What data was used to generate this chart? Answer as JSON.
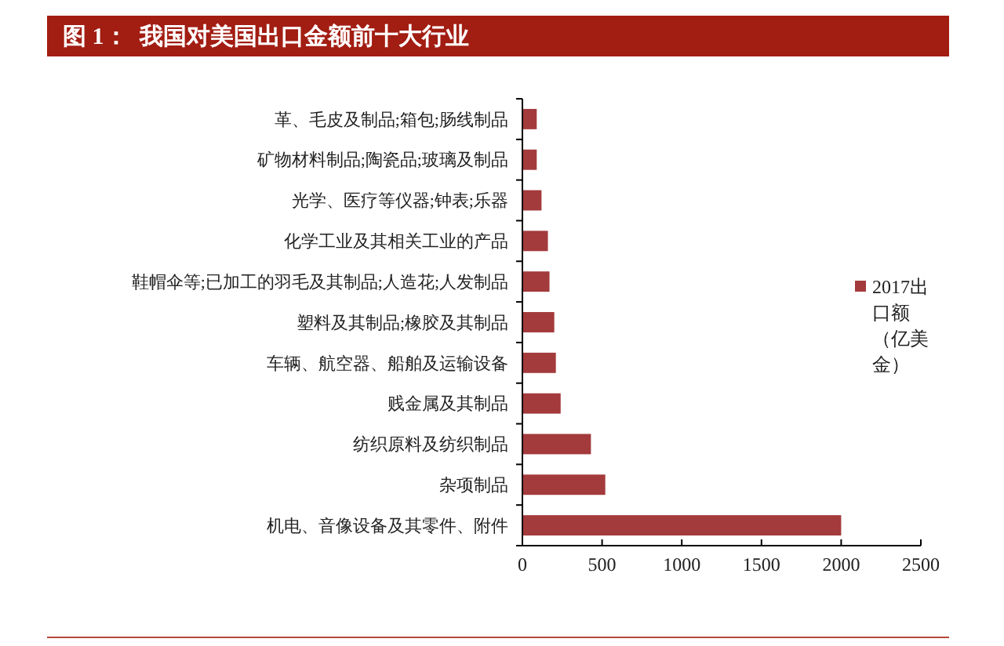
{
  "chart_data": {
    "type": "bar",
    "orientation": "horizontal",
    "title": "图 1：  我国对美国出口金额前十大行业",
    "categories": [
      "革、毛皮及制品;箱包;肠线制品",
      "矿物材料制品;陶瓷品;玻璃及制品",
      "光学、医疗等仪器;钟表;乐器",
      "化学工业及其相关工业的产品",
      "鞋帽伞等;已加工的羽毛及其制品;人造花;人发制品",
      "塑料及其制品;橡胶及其制品",
      "车辆、航空器、船舶及运输设备",
      "贱金属及其制品",
      "纺织原料及纺织制品",
      "杂项制品",
      "机电、音像设备及其零件、附件"
    ],
    "series": [
      {
        "name": "2017出口额（亿美金）",
        "color": "#a33a3c",
        "values": [
          90,
          90,
          120,
          160,
          170,
          200,
          210,
          240,
          430,
          520,
          2000
        ]
      }
    ],
    "xlim": [
      0,
      2500
    ],
    "xticks": [
      0,
      500,
      1000,
      1500,
      2000,
      2500
    ],
    "legend": "right"
  }
}
